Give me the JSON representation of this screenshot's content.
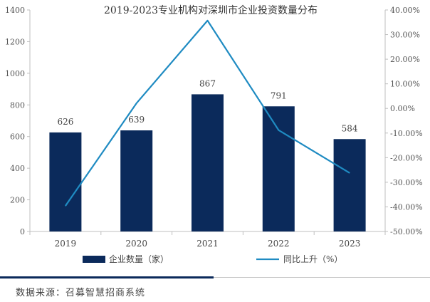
{
  "chart_data": {
    "type": "bar+line",
    "title": "2019-2023专业机构对深圳市企业投资数量分布",
    "categories": [
      "2019",
      "2020",
      "2021",
      "2022",
      "2023"
    ],
    "series": [
      {
        "name": "企业数量（家）",
        "type": "bar",
        "axis": "left",
        "color": "#0b2a5b",
        "values": [
          626,
          639,
          867,
          791,
          584
        ]
      },
      {
        "name": "同比上升（%）",
        "type": "line",
        "axis": "right",
        "color": "#1f8bc2",
        "values": [
          -39.6,
          2.1,
          35.7,
          -8.8,
          -26.2
        ]
      }
    ],
    "y_left": {
      "min": 0,
      "max": 1400,
      "step": 200,
      "ticks": [
        "0",
        "200",
        "400",
        "600",
        "800",
        "1000",
        "1200",
        "1400"
      ]
    },
    "y_right": {
      "min": -50,
      "max": 40,
      "step": 10,
      "ticks": [
        "-50.00%",
        "-40.00%",
        "-30.00%",
        "-20.00%",
        "-10.00%",
        "0.00%",
        "10.00%",
        "20.00%",
        "30.00%",
        "40.00%"
      ]
    },
    "data_labels": [
      "626",
      "639",
      "867",
      "791",
      "584"
    ],
    "legend": {
      "position": "bottom"
    },
    "grid": false
  },
  "source_text": "数据来源：召募智慧招商系统"
}
